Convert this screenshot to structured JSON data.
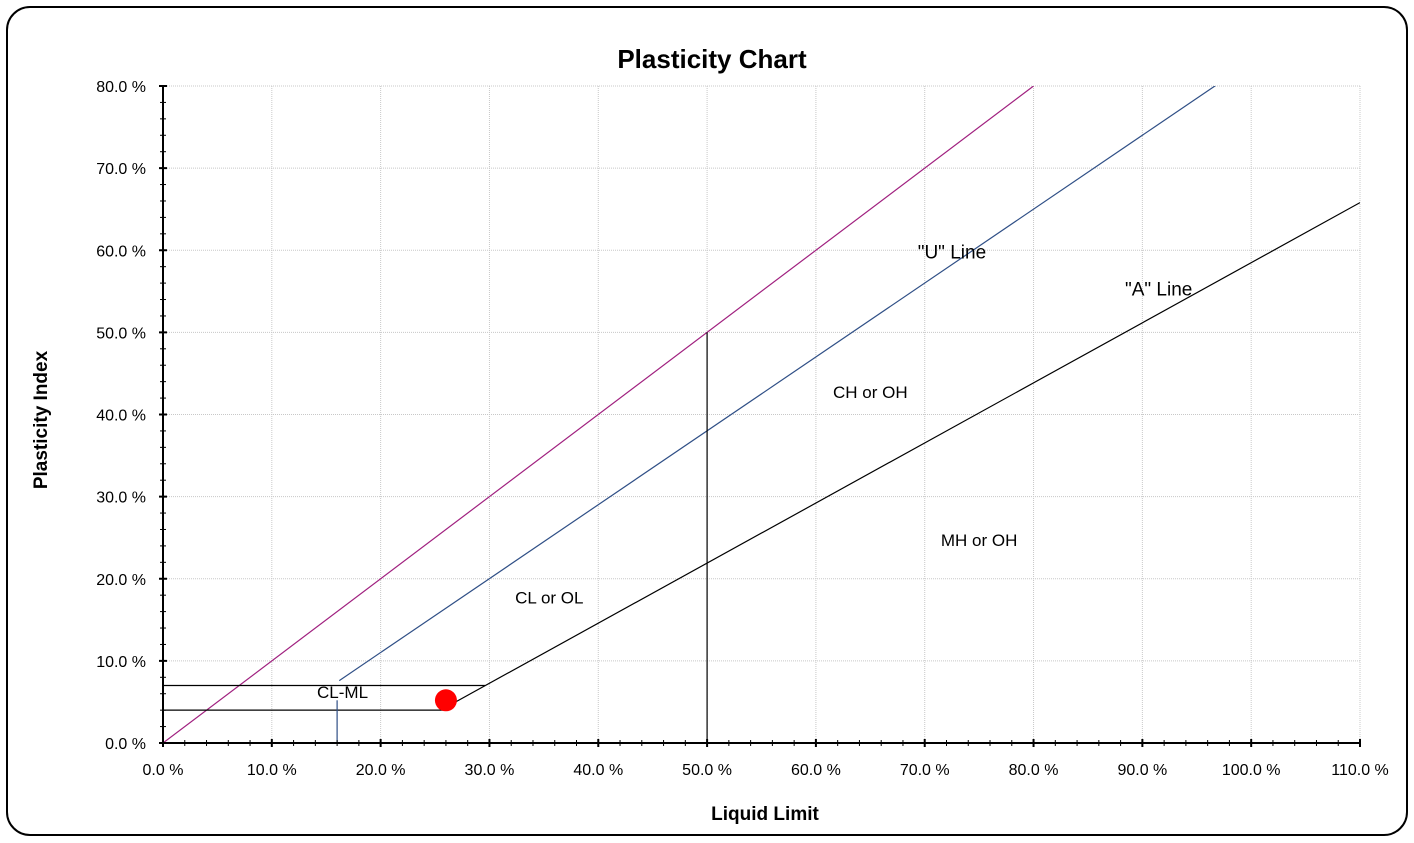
{
  "chart_data": {
    "type": "scatter",
    "title": "Plasticity Chart",
    "xlabel": "Liquid Limit",
    "ylabel": "Plasticity Index",
    "xlim": [
      0,
      110
    ],
    "ylim": [
      0,
      80
    ],
    "x_ticks": [
      0,
      10,
      20,
      30,
      40,
      50,
      60,
      70,
      80,
      90,
      100,
      110
    ],
    "y_ticks": [
      0,
      10,
      20,
      30,
      40,
      50,
      60,
      70,
      80
    ],
    "x_tick_labels": [
      "0.0 %",
      "10.0 %",
      "20.0 %",
      "30.0 %",
      "40.0 %",
      "50.0 %",
      "60.0 %",
      "70.0 %",
      "80.0 %",
      "90.0 %",
      "100.0 %",
      "110.0 %"
    ],
    "y_tick_labels": [
      "0.0 %",
      "10.0 %",
      "20.0 %",
      "30.0 %",
      "40.0 %",
      "50.0 %",
      "60.0 %",
      "70.0 %",
      "80.0 %"
    ],
    "grid": true,
    "lines": [
      {
        "name": "LL=PI line",
        "color": "#a0207f",
        "points": [
          [
            0,
            0
          ],
          [
            80,
            80
          ]
        ]
      },
      {
        "name": "U line",
        "color": "#2f4f86",
        "points": [
          [
            16.2,
            7.6
          ],
          [
            97,
            80.3
          ]
        ]
      },
      {
        "name": "A line",
        "color": "#000000",
        "points": [
          [
            25.8,
            4.2
          ],
          [
            110,
            65.8
          ]
        ]
      },
      {
        "name": "LL 50 divider",
        "color": "#000000",
        "points": [
          [
            50,
            0
          ],
          [
            50,
            50
          ]
        ]
      },
      {
        "name": "CL-ML upper",
        "color": "#000000",
        "points": [
          [
            0,
            7
          ],
          [
            29.6,
            7
          ]
        ]
      },
      {
        "name": "CL-ML lower",
        "color": "#000000",
        "points": [
          [
            0,
            4
          ],
          [
            25.8,
            4
          ]
        ]
      },
      {
        "name": "CL-ML divider",
        "color": "#2f4f86",
        "points": [
          [
            16,
            0
          ],
          [
            16,
            5.2
          ]
        ]
      }
    ],
    "line_labels": [
      {
        "text": "\"U\" Line",
        "x": 72.5,
        "y": 59
      },
      {
        "text": "\"A\" Line",
        "x": 91.5,
        "y": 54.5
      }
    ],
    "zone_labels": [
      {
        "text": "CH or OH",
        "x": 65,
        "y": 42
      },
      {
        "text": "MH or OH",
        "x": 75,
        "y": 24
      },
      {
        "text": "CL or OL",
        "x": 35.5,
        "y": 17
      },
      {
        "text": "CL-ML",
        "x": 16.5,
        "y": 5.5
      }
    ],
    "points": [
      {
        "x": 26,
        "y": 5.2,
        "color": "#ff0000"
      }
    ]
  }
}
